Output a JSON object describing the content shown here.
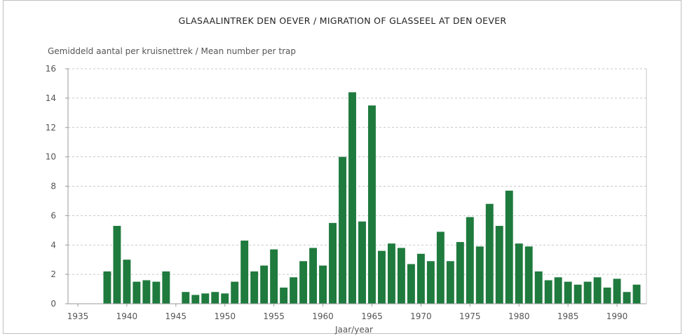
{
  "chart_data": {
    "type": "bar",
    "title": "GLASAALINTREK DEN OEVER / MIGRATION OF GLASSEEL AT DEN OEVER",
    "ylabel": "Gemiddeld aantal per kruisnettrek / Mean number per trap",
    "xlabel": "Jaar/year",
    "ylim": [
      0,
      16
    ],
    "xlim": [
      1934,
      1993
    ],
    "yticks": [
      "0",
      "2",
      "4",
      "6",
      "8",
      "10",
      "12",
      "14",
      "16"
    ],
    "xticks": [
      "1935",
      "1940",
      "1945",
      "1950",
      "1955",
      "1960",
      "1965",
      "1970",
      "1975",
      "1980",
      "1985",
      "1990"
    ],
    "grid": true,
    "bar_color": "#1f7a3e",
    "series": [
      {
        "x": [
          1938,
          1939,
          1940,
          1941,
          1942,
          1943,
          1944,
          1946,
          1947,
          1948,
          1949,
          1950,
          1951,
          1952,
          1953,
          1954,
          1955,
          1956,
          1957,
          1958,
          1959,
          1960,
          1961,
          1962,
          1963,
          1964,
          1965,
          1966,
          1967,
          1968,
          1969,
          1970,
          1971,
          1972,
          1973,
          1974,
          1975,
          1976,
          1977,
          1978,
          1979,
          1980,
          1981,
          1982,
          1983,
          1984,
          1985,
          1986,
          1987,
          1988,
          1989,
          1990,
          1991,
          1992
        ],
        "values": [
          2.2,
          5.3,
          3.0,
          1.5,
          1.6,
          1.5,
          2.2,
          0.8,
          0.6,
          0.7,
          0.8,
          0.7,
          1.5,
          4.3,
          2.2,
          2.6,
          3.7,
          1.1,
          1.8,
          2.9,
          3.8,
          2.6,
          5.5,
          10.0,
          14.4,
          5.6,
          13.5,
          3.6,
          4.1,
          3.8,
          2.7,
          3.4,
          2.9,
          4.9,
          2.9,
          4.2,
          5.9,
          3.9,
          6.8,
          5.3,
          7.7,
          4.1,
          3.9,
          2.2,
          1.6,
          1.8,
          1.5,
          1.3,
          1.5,
          1.8,
          1.1,
          1.7,
          0.8,
          1.3
        ]
      }
    ]
  }
}
